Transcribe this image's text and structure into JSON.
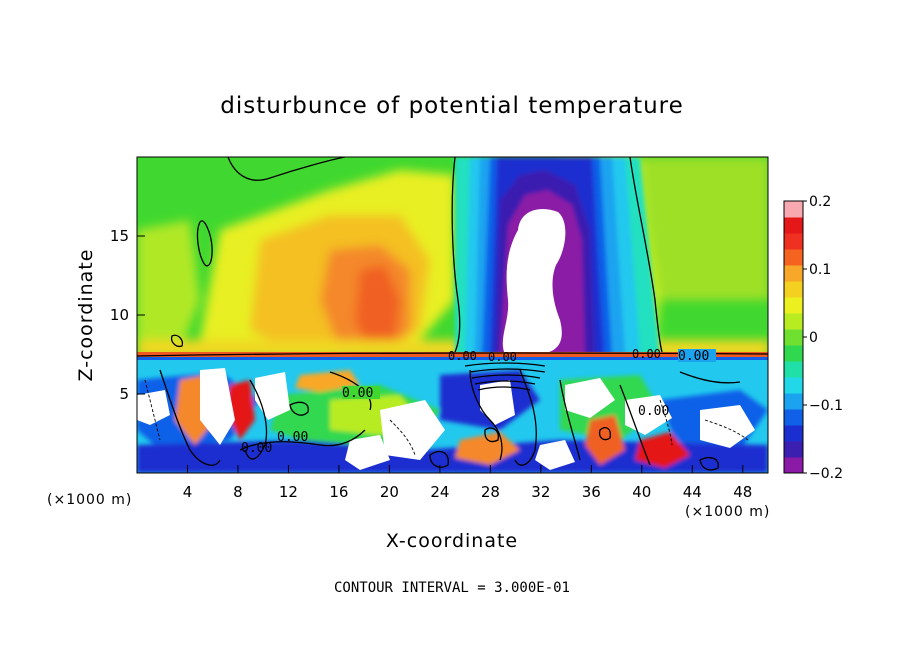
{
  "chart_data": {
    "type": "heatmap",
    "title": "disturbunce of potential temperature",
    "xlabel": "X-coordinate",
    "ylabel": "Z-coordinate",
    "x_unit_left": "(×1000 m)",
    "x_unit_right": "(×1000 m)",
    "xlim": [
      0,
      50
    ],
    "ylim": [
      0,
      20
    ],
    "x_ticks": [
      4,
      8,
      12,
      16,
      20,
      24,
      28,
      32,
      36,
      40,
      44,
      48
    ],
    "y_ticks": [
      5,
      10,
      15
    ],
    "colorbar": {
      "min": -0.2,
      "max": 0.2,
      "tick_values": [
        0.2,
        0.1,
        0,
        -0.1,
        -0.2
      ],
      "tick_labels": [
        "0.2",
        "0.1",
        "0",
        "−0.1",
        "−0.2"
      ],
      "colors": [
        "#8b1aa6",
        "#3b1fb0",
        "#1b2fd0",
        "#1060e8",
        "#1ca3f0",
        "#22d8e8",
        "#20e0a8",
        "#30d850",
        "#70e030",
        "#b8ec20",
        "#ecf020",
        "#f4d020",
        "#f8a828",
        "#f46420",
        "#f03020",
        "#e41818",
        "#f8a8b0"
      ]
    },
    "contour_labels": [
      "0.00",
      "0.00",
      "0.00",
      "0.00",
      "0.00",
      "0.00",
      "0.00",
      "0.00"
    ],
    "footer": "CONTOUR INTERVAL = 3.000E-01"
  }
}
